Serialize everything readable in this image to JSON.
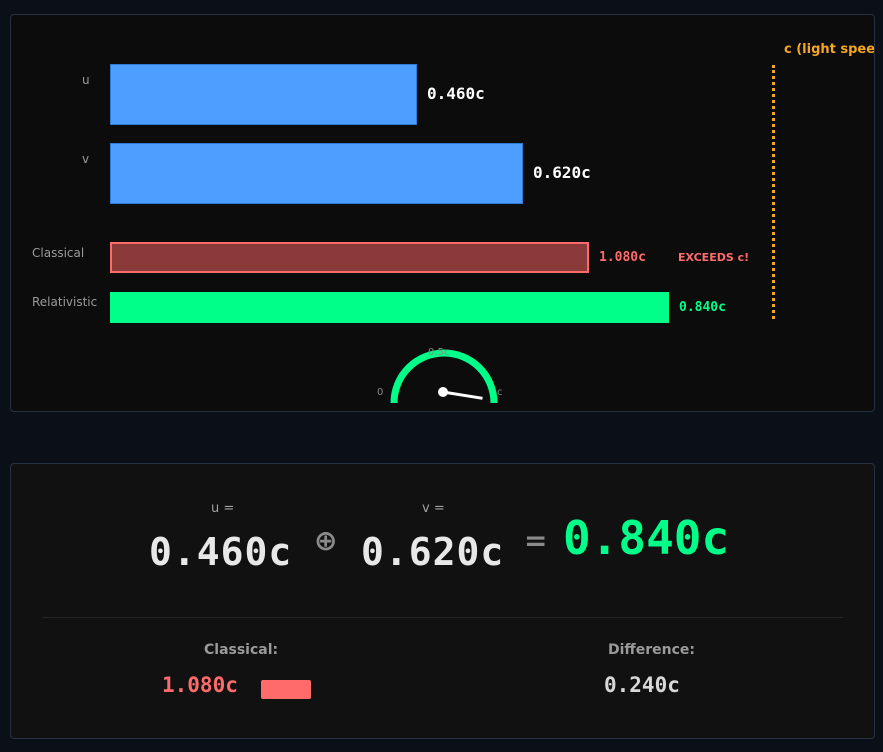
{
  "visualization": {
    "rows": [
      {
        "id": "u",
        "label": "u",
        "value_text": "0.460c",
        "fraction": 0.46
      },
      {
        "id": "v",
        "label": "v",
        "value_text": "0.620c",
        "fraction": 0.62
      },
      {
        "id": "classical",
        "label": "Classical",
        "value_text": "1.080c",
        "fraction": 1.08
      },
      {
        "id": "relativistic",
        "label": "Relativistic",
        "value_text": "0.840c",
        "fraction": 0.84
      }
    ],
    "exceeds_label": "EXCEEDS c!",
    "light_speed_label": "c (light speed)",
    "gauge": {
      "label_zero": "0",
      "label_half": "0.5c",
      "label_c": "c",
      "value_fraction": 0.84
    }
  },
  "summary": {
    "u_label": "u =",
    "u_value": "0.460c",
    "combine_symbol": "⊕",
    "v_label": "v =",
    "v_value": "0.620c",
    "equals_symbol": "=",
    "result_value": "0.840c",
    "classical_label": "Classical:",
    "classical_value": "1.080c",
    "difference_label": "Difference:",
    "difference_value": "0.240c"
  },
  "colors": {
    "bar_blue": "#4d9eff",
    "classical_red": "#ff6b6b",
    "relativistic_green": "#00ff88",
    "light_speed_orange": "#f5a623"
  }
}
